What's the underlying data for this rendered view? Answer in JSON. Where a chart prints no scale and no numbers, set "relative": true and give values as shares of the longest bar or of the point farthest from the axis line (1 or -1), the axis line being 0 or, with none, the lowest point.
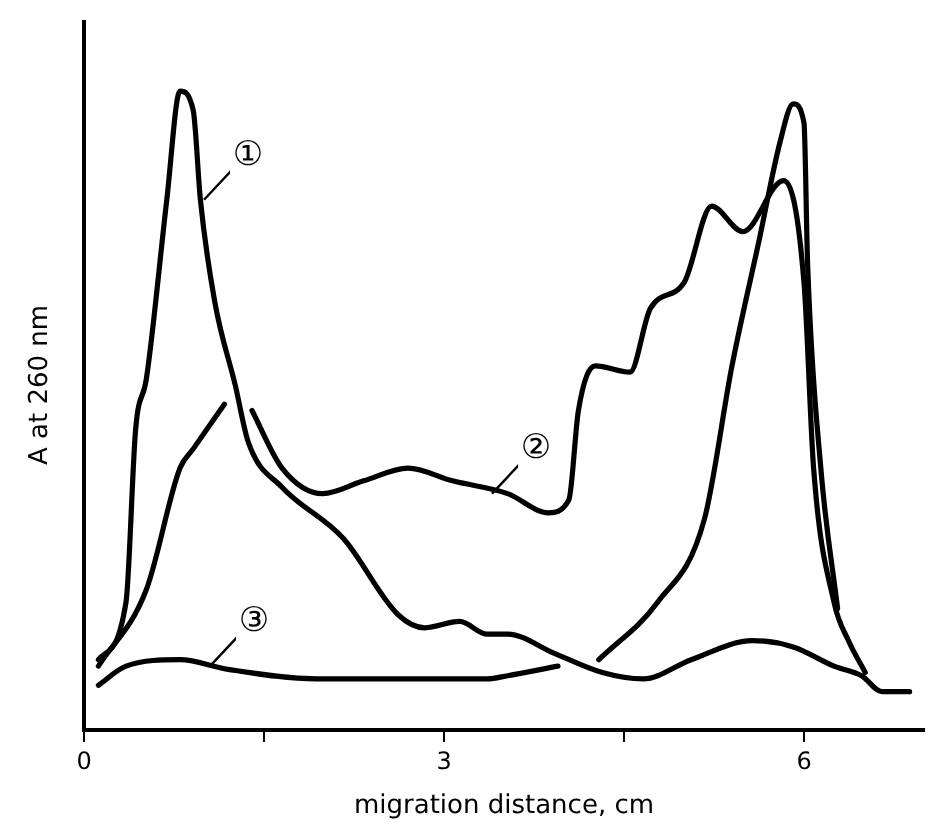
{
  "chart_data": {
    "type": "line",
    "relative": true,
    "xlabel": "migration distance, cm",
    "ylabel": "A at 260 nm",
    "xlim": [
      0,
      7
    ],
    "xticks": [
      0,
      {
        "value": 1.5,
        "label": null
      },
      3,
      {
        "value": 4.5,
        "label": null
      },
      6
    ],
    "grid": false,
    "legend": false,
    "marker": "none",
    "line_style": "solid",
    "series": [
      {
        "color": "#000000",
        "x": [
          0.12,
          0.35,
          0.43,
          0.52,
          0.69,
          0.8,
          0.91,
          0.97,
          1.09,
          1.26,
          1.37,
          1.65,
          2.16,
          2.62,
          2.84,
          3.13,
          3.36,
          3.53,
          3.92,
          4.32,
          4.66,
          5.06,
          5.57,
          5.91,
          6.25,
          6.48,
          6.65,
          6.88
        ],
        "values": [
          0.11,
          0.2,
          0.47,
          0.55,
          0.83,
          1,
          0.97,
          0.83,
          0.67,
          0.54,
          0.45,
          0.38,
          0.3,
          0.18,
          0.16,
          0.17,
          0.15,
          0.15,
          0.12,
          0.09,
          0.08,
          0.11,
          0.14,
          0.13,
          0.1,
          0.085,
          0.06,
          0.06
        ]
      },
      {
        "color": "#000000",
        "x": [
          0.12,
          0.52,
          0.8,
          0.91,
          1.17,
          1.3,
          1.4,
          1.65,
          1.99,
          2.33,
          2.7,
          3.07,
          3.53,
          3.87,
          4.04,
          4.12,
          4.26,
          4.55,
          4.72,
          5.0,
          5.23,
          5.49,
          5.83,
          6.0,
          6.08,
          6.25,
          6.37,
          6.51
        ],
        "values": [
          0.1,
          0.22,
          0.41,
          0.44,
          0.51,
          null,
          0.5,
          0.41,
          0.37,
          0.39,
          0.41,
          0.39,
          0.37,
          0.34,
          0.36,
          0.5,
          0.57,
          0.56,
          0.66,
          0.7,
          0.82,
          0.78,
          0.86,
          0.7,
          0.41,
          0.2,
          0.14,
          0.09
        ]
      },
      {
        "color": "#000000",
        "x": [
          0.12,
          0.35,
          0.8,
          1.2,
          1.94,
          3.36,
          3.53,
          3.95,
          4.1,
          4.29,
          4.78,
          5.17,
          5.4,
          5.63,
          5.8,
          5.91,
          6.0,
          6.03,
          6.14,
          6.28
        ],
        "values": [
          0.07,
          0.1,
          0.11,
          0.095,
          0.08,
          0.08,
          0.085,
          0.1,
          null,
          0.11,
          0.2,
          0.33,
          0.57,
          0.77,
          0.92,
          0.98,
          0.95,
          0.73,
          0.41,
          0.19
        ]
      }
    ],
    "annotations": [
      {
        "text": "①",
        "x": 1.0,
        "y": 0.83
      },
      {
        "text": "②",
        "x": 3.4,
        "y": 0.37
      },
      {
        "text": "③",
        "x": 1.05,
        "y": 0.1
      }
    ]
  }
}
